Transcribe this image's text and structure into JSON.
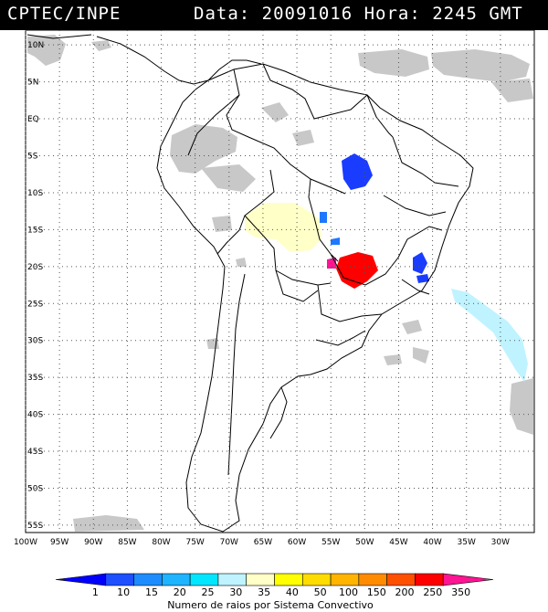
{
  "header": {
    "source": "CPTEC/INPE",
    "date_time": "Data: 20091016 Hora: 2245 GMT"
  },
  "map": {
    "lat_ticks": [
      "10N",
      "5N",
      "EQ",
      "5S",
      "10S",
      "15S",
      "20S",
      "25S",
      "30S",
      "35S",
      "40S",
      "45S",
      "50S",
      "55S"
    ],
    "lon_ticks": [
      "100W",
      "95W",
      "90W",
      "85W",
      "80W",
      "75W",
      "70W",
      "65W",
      "60W",
      "55W",
      "50W",
      "45W",
      "40W",
      "35W",
      "30W"
    ],
    "grid": "dotted",
    "colors": {
      "land_outline": "#000000",
      "cloud": "#c8c8c8",
      "blue": "#1a3cff",
      "mid_blue": "#1e78ff",
      "light_yellow": "#ffffc8",
      "red": "#ff0000",
      "magenta": "#ff1493",
      "light_cyan": "#bff3ff"
    }
  },
  "legend": {
    "labels": [
      "1",
      "10",
      "15",
      "20",
      "25",
      "30",
      "35",
      "40",
      "50",
      "100",
      "150",
      "200",
      "250",
      "350"
    ],
    "colors": [
      "#0000ff",
      "#1e50ff",
      "#1e8cff",
      "#1eb4ff",
      "#00e6ff",
      "#bff3ff",
      "#ffffc8",
      "#ffff00",
      "#ffdc00",
      "#ffb400",
      "#ff8c00",
      "#ff5000",
      "#ff0000",
      "#ff1493"
    ],
    "caption": "Numero de raios por Sistema Convectivo"
  }
}
